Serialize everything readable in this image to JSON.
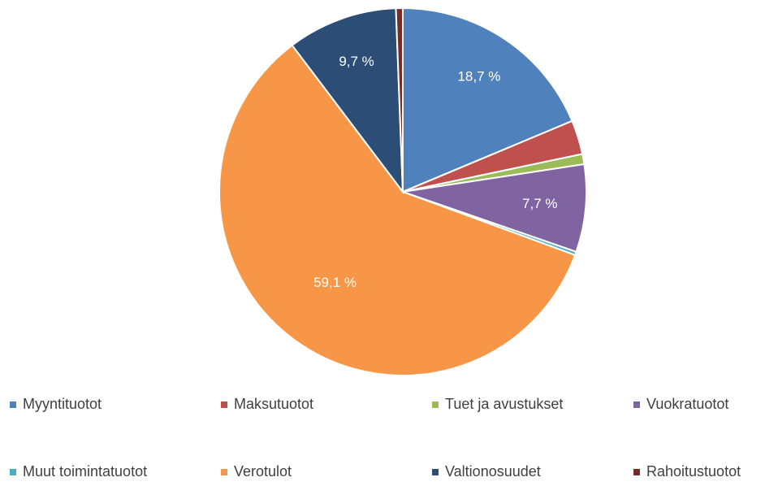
{
  "chart_data": {
    "type": "pie",
    "categories": [
      "Myyntituotot",
      "Maksutuotot",
      "Tuet ja avustukset",
      "Vuokratuotot",
      "Muut toimintatuotot",
      "Verotulot",
      "Valtionosuudet",
      "Rahoitustuotot"
    ],
    "values": [
      18.7,
      3.0,
      0.9,
      7.7,
      0.3,
      59.1,
      9.7,
      0.6
    ],
    "value_labels": [
      "18,7 %",
      null,
      null,
      "7,7 %",
      null,
      "59,1 %",
      "9,7 %",
      null
    ],
    "colors": [
      "#4f81bd",
      "#c0504d",
      "#9bbb59",
      "#8064a2",
      "#4bacc6",
      "#f79646",
      "#2c4d75",
      "#772c2a"
    ],
    "legend": "bottom"
  }
}
